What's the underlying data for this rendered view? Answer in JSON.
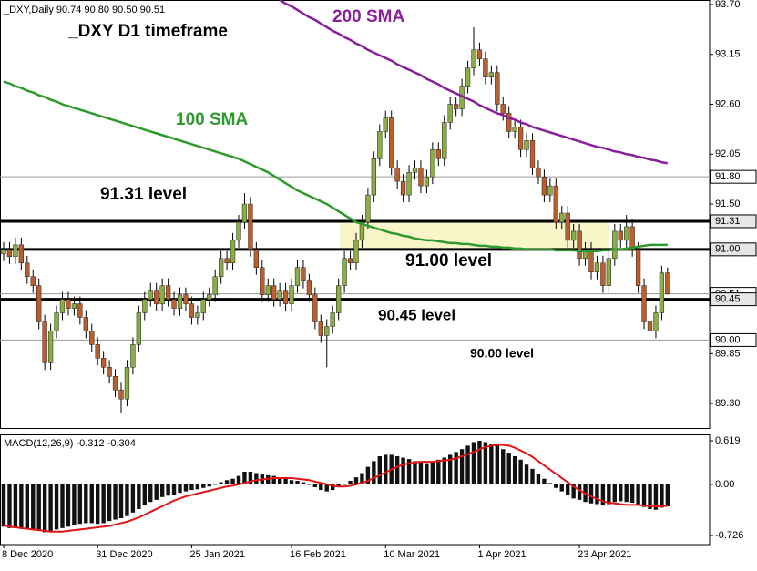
{
  "chart_data": {
    "type": "candlestick",
    "header": "_DXY,Daily 90.74 90.80 90.50 90.51",
    "categories": [
      "8 Dec 2020",
      null,
      null,
      null,
      null,
      null,
      null,
      null,
      null,
      null,
      null,
      null,
      null,
      null,
      null,
      null,
      "31 Dec 2020",
      null,
      null,
      null,
      null,
      null,
      null,
      null,
      null,
      null,
      null,
      null,
      null,
      null,
      null,
      null,
      "25 Jan 2021",
      null,
      null,
      null,
      null,
      null,
      null,
      null,
      null,
      null,
      null,
      null,
      null,
      null,
      null,
      null,
      null,
      "16 Feb 2021",
      null,
      null,
      null,
      null,
      null,
      null,
      null,
      null,
      null,
      null,
      null,
      null,
      null,
      null,
      null,
      "10 Mar 2021",
      null,
      null,
      null,
      null,
      null,
      null,
      null,
      null,
      null,
      null,
      null,
      null,
      null,
      null,
      null,
      "1 Apr 2021",
      null,
      null,
      null,
      null,
      null,
      null,
      null,
      null,
      null,
      null,
      null,
      null,
      null,
      null,
      null,
      null,
      "23 Apr 2021",
      null,
      null,
      null,
      null,
      null,
      null,
      null,
      null,
      null,
      null,
      null,
      null,
      null,
      null,
      null
    ],
    "open": [
      90.95,
      91.0,
      90.92,
      91.05,
      90.85,
      90.7,
      90.6,
      90.2,
      89.75,
      90.1,
      90.3,
      90.45,
      90.35,
      90.4,
      90.25,
      90.1,
      89.95,
      89.8,
      89.7,
      89.6,
      89.45,
      89.35,
      89.7,
      89.95,
      90.3,
      90.45,
      90.55,
      90.4,
      90.6,
      90.45,
      90.35,
      90.5,
      90.4,
      90.25,
      90.3,
      90.45,
      90.5,
      90.7,
      90.9,
      90.85,
      91.1,
      91.3,
      91.5,
      91.0,
      90.8,
      90.5,
      90.6,
      90.45,
      90.55,
      90.4,
      90.6,
      90.8,
      90.65,
      90.5,
      90.2,
      90.05,
      90.15,
      90.3,
      90.6,
      90.9,
      90.85,
      91.1,
      91.3,
      91.6,
      92.0,
      92.3,
      92.45,
      91.9,
      91.75,
      91.6,
      91.85,
      91.9,
      91.7,
      91.8,
      92.1,
      92.0,
      92.4,
      92.6,
      92.55,
      92.8,
      93.0,
      93.2,
      93.1,
      92.9,
      92.95,
      92.6,
      92.5,
      92.3,
      92.35,
      92.1,
      92.2,
      91.9,
      91.8,
      91.6,
      91.7,
      91.3,
      91.4,
      91.1,
      91.2,
      90.9,
      91.0,
      90.75,
      90.85,
      90.6,
      90.9,
      91.2,
      91.1,
      91.25,
      91.0,
      90.6,
      90.2,
      90.1,
      90.3,
      90.74
    ],
    "high": [
      91.08,
      91.08,
      91.13,
      91.13,
      90.93,
      90.78,
      90.68,
      90.28,
      90.18,
      90.38,
      90.53,
      90.53,
      90.48,
      90.48,
      90.33,
      90.18,
      90.03,
      89.88,
      89.78,
      89.68,
      89.53,
      89.78,
      90.03,
      90.38,
      90.53,
      90.63,
      90.63,
      90.68,
      90.68,
      90.53,
      90.58,
      90.58,
      90.48,
      90.38,
      90.53,
      90.58,
      90.78,
      90.98,
      90.98,
      91.18,
      91.38,
      91.62,
      91.58,
      91.08,
      90.88,
      90.68,
      90.68,
      90.63,
      90.63,
      90.68,
      90.88,
      90.88,
      90.73,
      90.58,
      90.28,
      90.23,
      90.38,
      90.68,
      90.98,
      90.98,
      91.18,
      91.38,
      91.68,
      92.08,
      92.38,
      92.53,
      92.53,
      91.98,
      91.83,
      91.93,
      91.98,
      91.98,
      91.88,
      92.18,
      92.18,
      92.48,
      92.68,
      92.68,
      92.88,
      93.08,
      93.45,
      93.28,
      93.18,
      93.03,
      93.03,
      92.68,
      92.58,
      92.43,
      92.43,
      92.28,
      92.28,
      91.98,
      91.88,
      91.78,
      91.78,
      91.48,
      91.48,
      91.28,
      91.28,
      91.08,
      91.08,
      90.93,
      90.93,
      90.98,
      91.28,
      91.28,
      91.38,
      91.33,
      91.08,
      90.68,
      90.28,
      90.38,
      90.82,
      90.8
    ],
    "low": [
      90.87,
      90.84,
      90.84,
      90.77,
      90.62,
      90.52,
      90.12,
      89.67,
      89.67,
      90.02,
      90.22,
      90.27,
      90.27,
      90.17,
      90.02,
      89.87,
      89.72,
      89.62,
      89.52,
      89.37,
      89.2,
      89.27,
      89.62,
      89.87,
      90.22,
      90.37,
      90.32,
      90.32,
      90.37,
      90.27,
      90.27,
      90.32,
      90.17,
      90.17,
      90.22,
      90.37,
      90.42,
      90.62,
      90.77,
      90.77,
      91.02,
      91.22,
      90.92,
      90.72,
      90.42,
      90.42,
      90.37,
      90.37,
      90.32,
      90.32,
      90.52,
      90.57,
      90.42,
      90.12,
      89.97,
      89.7,
      90.07,
      90.22,
      90.52,
      90.77,
      90.77,
      91.02,
      91.22,
      91.52,
      91.92,
      92.22,
      91.82,
      91.67,
      91.52,
      91.52,
      91.77,
      91.62,
      91.62,
      91.72,
      91.92,
      91.92,
      92.32,
      92.47,
      92.47,
      92.72,
      92.92,
      93.02,
      92.82,
      92.82,
      92.52,
      92.42,
      92.22,
      92.22,
      92.02,
      92.02,
      91.82,
      91.72,
      91.52,
      91.52,
      91.22,
      91.22,
      91.02,
      91.02,
      90.82,
      90.82,
      90.67,
      90.67,
      90.52,
      90.52,
      90.82,
      91.02,
      91.02,
      90.92,
      90.52,
      90.12,
      90.0,
      90.02,
      90.22,
      90.5
    ],
    "close": [
      91.0,
      90.92,
      91.05,
      90.85,
      90.7,
      90.6,
      90.2,
      89.75,
      90.1,
      90.3,
      90.45,
      90.35,
      90.4,
      90.25,
      90.1,
      89.95,
      89.8,
      89.7,
      89.6,
      89.45,
      89.35,
      89.7,
      89.95,
      90.3,
      90.45,
      90.55,
      90.4,
      90.6,
      90.45,
      90.35,
      90.5,
      90.4,
      90.25,
      90.3,
      90.45,
      90.5,
      90.7,
      90.9,
      90.85,
      91.1,
      91.3,
      91.5,
      91.0,
      90.8,
      90.5,
      90.6,
      90.45,
      90.55,
      90.4,
      90.6,
      90.8,
      90.65,
      90.5,
      90.2,
      90.05,
      90.15,
      90.3,
      90.6,
      90.9,
      90.85,
      91.1,
      91.3,
      91.6,
      92.0,
      92.3,
      92.45,
      91.9,
      91.75,
      91.6,
      91.85,
      91.9,
      91.7,
      91.8,
      92.1,
      92.0,
      92.4,
      92.6,
      92.55,
      92.8,
      93.0,
      93.2,
      93.1,
      92.9,
      92.95,
      92.6,
      92.5,
      92.3,
      92.35,
      92.1,
      92.2,
      91.9,
      91.8,
      91.6,
      91.7,
      91.3,
      91.4,
      91.1,
      91.2,
      90.9,
      91.0,
      90.75,
      90.85,
      90.6,
      90.9,
      91.2,
      91.1,
      91.25,
      91.0,
      90.6,
      90.2,
      90.1,
      90.3,
      90.74,
      90.51
    ],
    "up_color": "#8aae45",
    "down_color": "#bd5f2c",
    "ylim": [
      89.03,
      93.75
    ],
    "yticks": [
      {
        "value": 93.7,
        "label": "93.70"
      },
      93.15,
      {
        "value": 92.6,
        "label": "92.60"
      },
      92.05,
      {
        "value": 91.5,
        "label": "91.50"
      },
      89.85,
      {
        "value": 89.3,
        "label": "89.30"
      }
    ],
    "levels": [
      {
        "value": 91.8,
        "label": "91.80",
        "style": "thin"
      },
      {
        "value": 91.31,
        "label": "91.31",
        "style": "thick"
      },
      {
        "value": 91.0,
        "label": "91.00",
        "style": "thick"
      },
      {
        "value": 90.51,
        "label": "90.51",
        "style": "thin"
      },
      {
        "value": 90.45,
        "label": "90.45",
        "style": "thick"
      },
      {
        "value": 90.0,
        "label": "90.00",
        "style": "thin"
      }
    ],
    "zone_color": "#f8f5c8",
    "series": [
      {
        "name": "100 SMA",
        "color": "#2e9a2e",
        "values": [
          92.85,
          92.83,
          92.8,
          92.78,
          92.75,
          92.73,
          92.7,
          92.68,
          92.65,
          92.63,
          92.6,
          92.58,
          92.56,
          92.54,
          92.52,
          92.5,
          92.48,
          92.46,
          92.44,
          92.42,
          92.4,
          92.38,
          92.36,
          92.34,
          92.32,
          92.3,
          92.28,
          92.26,
          92.24,
          92.22,
          92.2,
          92.18,
          92.16,
          92.14,
          92.12,
          92.1,
          92.08,
          92.06,
          92.04,
          92.02,
          92.0,
          91.97,
          91.94,
          91.91,
          91.88,
          91.85,
          91.81,
          91.77,
          91.73,
          91.69,
          91.65,
          91.62,
          91.59,
          91.56,
          91.53,
          91.5,
          91.46,
          91.42,
          91.38,
          91.34,
          91.3,
          91.28,
          91.26,
          91.24,
          91.22,
          91.2,
          91.18,
          91.17,
          91.15,
          91.14,
          91.12,
          91.11,
          91.1,
          91.1,
          91.09,
          91.08,
          91.07,
          91.07,
          91.06,
          91.06,
          91.05,
          91.04,
          91.04,
          91.03,
          91.03,
          91.02,
          91.02,
          91.01,
          91.01,
          91.0,
          91.0,
          91.0,
          91.0,
          91.0,
          90.99,
          90.99,
          90.99,
          90.99,
          90.98,
          90.98,
          90.98,
          90.98,
          90.99,
          90.99,
          91.0,
          91.0,
          91.01,
          91.02,
          91.03,
          91.04,
          91.05,
          91.05,
          91.05,
          91.05
        ]
      },
      {
        "name": "200 SMA",
        "color": "#8a1f9c",
        "values": [
          null,
          null,
          null,
          null,
          null,
          null,
          null,
          null,
          null,
          null,
          null,
          null,
          null,
          null,
          null,
          null,
          null,
          null,
          null,
          null,
          null,
          null,
          null,
          null,
          null,
          null,
          null,
          null,
          null,
          null,
          null,
          null,
          null,
          null,
          null,
          null,
          null,
          null,
          null,
          null,
          null,
          null,
          null,
          null,
          null,
          null,
          null,
          93.75,
          93.71,
          93.68,
          93.64,
          93.6,
          93.56,
          93.53,
          93.49,
          93.45,
          93.41,
          93.38,
          93.34,
          93.31,
          93.27,
          93.24,
          93.2,
          93.17,
          93.14,
          93.11,
          93.08,
          93.04,
          93.01,
          92.98,
          92.95,
          92.92,
          92.88,
          92.85,
          92.82,
          92.78,
          92.75,
          92.72,
          92.69,
          92.66,
          92.63,
          92.59,
          92.56,
          92.53,
          92.5,
          92.48,
          92.45,
          92.43,
          92.4,
          92.38,
          92.35,
          92.33,
          92.31,
          92.29,
          92.27,
          92.25,
          92.23,
          92.21,
          92.19,
          92.17,
          92.15,
          92.13,
          92.12,
          92.1,
          92.08,
          92.07,
          92.05,
          92.04,
          92.02,
          92.01,
          91.99,
          91.98,
          91.96,
          91.95
        ]
      }
    ],
    "annotations": [
      "_DXY D1 timeframe",
      "91.31 level",
      "91.00 level",
      "90.45 level",
      "90.00 level"
    ],
    "indicator": {
      "type": "macd",
      "title": "MACD(12,26,9) -0.312 -0.304",
      "bar_color": "#111111",
      "signal_color": "#e21414",
      "ylim": [
        -0.855,
        0.71
      ],
      "yticks": [
        0.619,
        {
          "value": 0,
          "label": "0.00"
        },
        -0.726
      ],
      "histogram": [
        -0.6,
        -0.62,
        -0.62,
        -0.63,
        -0.64,
        -0.65,
        -0.66,
        -0.68,
        -0.66,
        -0.64,
        -0.62,
        -0.6,
        -0.58,
        -0.56,
        -0.55,
        -0.55,
        -0.56,
        -0.55,
        -0.52,
        -0.5,
        -0.48,
        -0.45,
        -0.4,
        -0.35,
        -0.3,
        -0.25,
        -0.22,
        -0.18,
        -0.16,
        -0.15,
        -0.12,
        -0.1,
        -0.08,
        -0.07,
        -0.05,
        -0.03,
        0.0,
        0.03,
        0.06,
        0.08,
        0.12,
        0.18,
        0.18,
        0.16,
        0.14,
        0.13,
        0.12,
        0.1,
        0.08,
        0.06,
        0.05,
        0.03,
        0.0,
        -0.04,
        -0.08,
        -0.1,
        -0.08,
        -0.04,
        0.0,
        0.05,
        0.1,
        0.16,
        0.25,
        0.33,
        0.4,
        0.42,
        0.42,
        0.4,
        0.38,
        0.36,
        0.33,
        0.32,
        0.3,
        0.32,
        0.35,
        0.38,
        0.42,
        0.46,
        0.5,
        0.55,
        0.6,
        0.62,
        0.6,
        0.58,
        0.55,
        0.5,
        0.45,
        0.4,
        0.35,
        0.28,
        0.22,
        0.15,
        0.08,
        0.02,
        -0.05,
        -0.1,
        -0.15,
        -0.2,
        -0.22,
        -0.25,
        -0.27,
        -0.28,
        -0.3,
        -0.28,
        -0.25,
        -0.24,
        -0.25,
        -0.26,
        -0.28,
        -0.32,
        -0.35,
        -0.36,
        -0.33,
        -0.312
      ],
      "signal": [
        -0.58,
        -0.6,
        -0.61,
        -0.62,
        -0.63,
        -0.64,
        -0.65,
        -0.66,
        -0.67,
        -0.67,
        -0.67,
        -0.66,
        -0.65,
        -0.64,
        -0.63,
        -0.62,
        -0.61,
        -0.6,
        -0.59,
        -0.57,
        -0.55,
        -0.53,
        -0.5,
        -0.47,
        -0.43,
        -0.39,
        -0.35,
        -0.31,
        -0.27,
        -0.23,
        -0.2,
        -0.17,
        -0.15,
        -0.13,
        -0.11,
        -0.09,
        -0.07,
        -0.05,
        -0.03,
        -0.02,
        0.0,
        0.02,
        0.04,
        0.06,
        0.07,
        0.08,
        0.09,
        0.09,
        0.09,
        0.09,
        0.08,
        0.07,
        0.06,
        0.04,
        0.02,
        0.0,
        -0.02,
        -0.03,
        -0.03,
        -0.02,
        0.0,
        0.02,
        0.05,
        0.09,
        0.13,
        0.17,
        0.21,
        0.25,
        0.28,
        0.3,
        0.31,
        0.32,
        0.32,
        0.32,
        0.33,
        0.34,
        0.35,
        0.37,
        0.4,
        0.43,
        0.46,
        0.5,
        0.53,
        0.55,
        0.56,
        0.56,
        0.55,
        0.52,
        0.48,
        0.44,
        0.39,
        0.33,
        0.27,
        0.21,
        0.15,
        0.09,
        0.03,
        -0.03,
        -0.08,
        -0.13,
        -0.17,
        -0.21,
        -0.24,
        -0.26,
        -0.27,
        -0.28,
        -0.29,
        -0.29,
        -0.29,
        -0.3,
        -0.31,
        -0.31,
        -0.31,
        -0.304
      ]
    }
  }
}
